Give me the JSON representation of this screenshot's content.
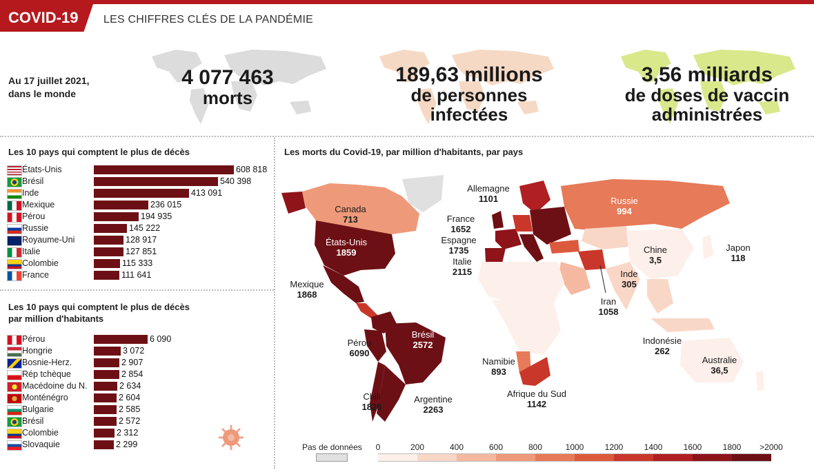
{
  "header": {
    "tag": "COVID-19",
    "subtitle": "LES CHIFFRES CLÉS DE LA PANDÉMIE"
  },
  "summary": {
    "date_line1": "Au 17 juillet 2021,",
    "date_line2": "dans le monde",
    "deaths": {
      "value": "4 077 463",
      "label": "morts"
    },
    "infected": {
      "value": "189,63 millions",
      "line2": "de personnes",
      "line3": "infectées"
    },
    "vaccines": {
      "value": "3,56 milliards",
      "line2": "de doses de vaccin",
      "line3": "administrées"
    }
  },
  "colors": {
    "brand_red": "#b5191e",
    "bar_color": "#6d1015",
    "map_grey": "#dddddd",
    "map_peach": "#f6d9c4",
    "map_green": "#d9e88b"
  },
  "chart_data": [
    {
      "type": "bar",
      "title": "Les 10 pays qui comptent le plus de décès",
      "categories": [
        "États-Unis",
        "Brésil",
        "Inde",
        "Mexique",
        "Pérou",
        "Russie",
        "Royaume-Uni",
        "Italie",
        "Colombie",
        "France"
      ],
      "values": [
        608818,
        540398,
        413091,
        236015,
        194935,
        145222,
        128917,
        127851,
        115333,
        111641
      ],
      "value_labels": [
        "608 818",
        "540 398",
        "413 091",
        "236 015",
        "194 935",
        "145 222",
        "128 917",
        "127 851",
        "115 333",
        "111 641"
      ],
      "flags": [
        "us",
        "br",
        "in",
        "mx",
        "pe",
        "ru",
        "gb",
        "it",
        "co",
        "fr"
      ]
    },
    {
      "type": "bar",
      "title_line1": "Les 10 pays qui comptent le plus de décès",
      "title_line2": "par million d'habitants",
      "categories": [
        "Pérou",
        "Hongrie",
        "Bosnie-Herz.",
        "Rép tchèque",
        "Macédoine du N.",
        "Monténégro",
        "Bulgarie",
        "Brésil",
        "Colombie",
        "Slovaquie"
      ],
      "values": [
        6090,
        3072,
        2907,
        2854,
        2634,
        2604,
        2585,
        2572,
        2312,
        2299
      ],
      "value_labels": [
        "6 090",
        "3 072",
        "2 907",
        "2 854",
        "2 634",
        "2 604",
        "2 585",
        "2 572",
        "2 312",
        "2 299"
      ],
      "flags": [
        "pe",
        "hu",
        "ba",
        "cz",
        "mk",
        "me",
        "bg",
        "br",
        "co",
        "sk"
      ]
    },
    {
      "type": "heatmap",
      "title": "Les morts du Covid-19, par million d'habitants, par pays",
      "countries": [
        {
          "name": "Canada",
          "value": "713"
        },
        {
          "name": "Allemagne",
          "value": "1101"
        },
        {
          "name": "Russie",
          "value": "994"
        },
        {
          "name": "France",
          "value": "1652"
        },
        {
          "name": "Espagne",
          "value": "1735"
        },
        {
          "name": "Italie",
          "value": "2115"
        },
        {
          "name": "États-Unis",
          "value": "1859"
        },
        {
          "name": "Mexique",
          "value": "1868"
        },
        {
          "name": "Chine",
          "value": "3,5"
        },
        {
          "name": "Japon",
          "value": "118"
        },
        {
          "name": "Inde",
          "value": "305"
        },
        {
          "name": "Iran",
          "value": "1058"
        },
        {
          "name": "Pérou",
          "value": "6090"
        },
        {
          "name": "Brésil",
          "value": "2572"
        },
        {
          "name": "Namibie",
          "value": "893"
        },
        {
          "name": "Indonésie",
          "value": "262"
        },
        {
          "name": "Australie",
          "value": "36,5"
        },
        {
          "name": "Chili",
          "value": "1826"
        },
        {
          "name": "Argentine",
          "value": "2263"
        },
        {
          "name": "Afrique du Sud",
          "value": "1142"
        }
      ],
      "legend": {
        "no_data_label": "Pas de données",
        "ticks": [
          "0",
          "200",
          "400",
          "600",
          "800",
          "1000",
          "1200",
          "1400",
          "1600",
          "1800",
          ">2000"
        ],
        "colors": [
          "#fdf0ea",
          "#f9d7c7",
          "#f4b9a0",
          "#ee9a7a",
          "#e77a58",
          "#dc5a3c",
          "#c9372a",
          "#b01f22",
          "#8e141a",
          "#6d1015"
        ],
        "no_data_color": "#e0e0e0"
      }
    }
  ]
}
